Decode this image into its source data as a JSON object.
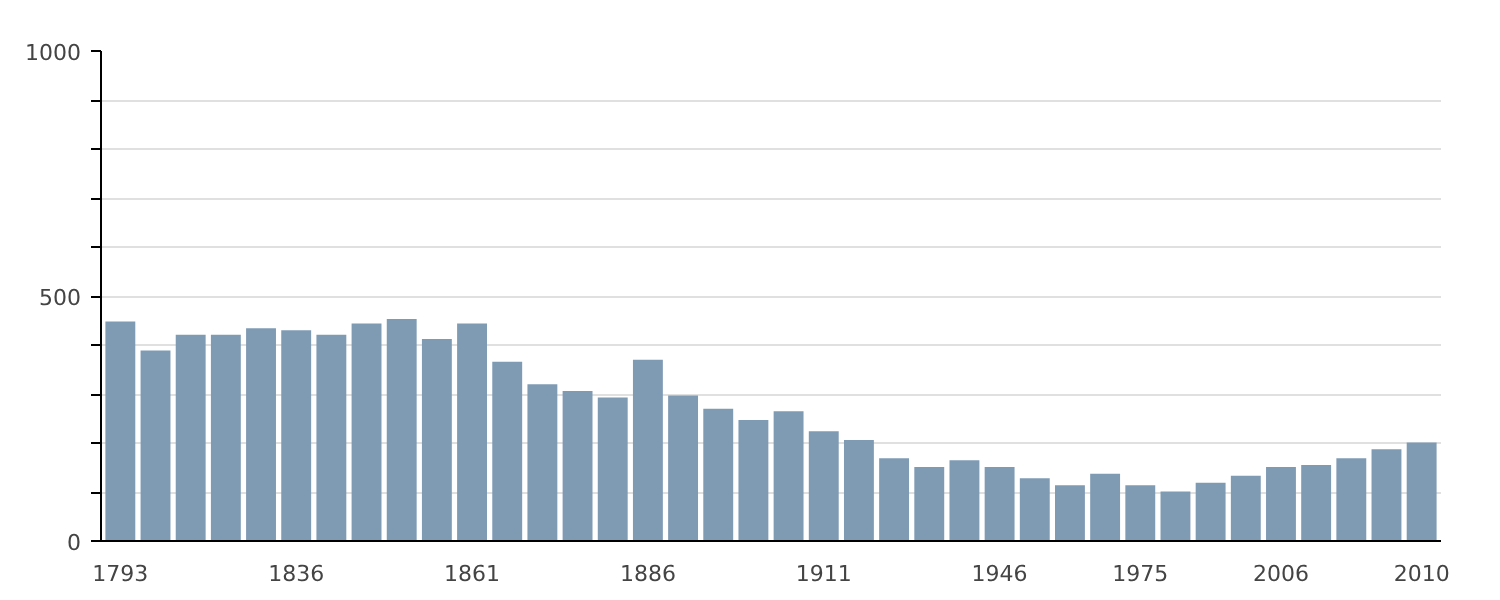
{
  "chart_data": {
    "type": "bar",
    "categories": [
      "1793",
      null,
      null,
      null,
      null,
      "1836",
      null,
      null,
      null,
      null,
      "1861",
      null,
      null,
      null,
      null,
      "1886",
      null,
      null,
      null,
      null,
      "1911",
      null,
      null,
      null,
      null,
      "1946",
      null,
      null,
      null,
      "1975",
      null,
      null,
      null,
      "2006",
      null,
      null,
      null,
      "2010"
    ],
    "values": [
      448,
      389,
      421,
      421,
      434,
      430,
      421,
      444,
      453,
      412,
      444,
      366,
      320,
      306,
      293,
      370,
      297,
      270,
      247,
      265,
      224,
      206,
      169,
      151,
      165,
      151,
      128,
      114,
      137,
      114,
      101,
      119,
      133,
      151,
      155,
      169,
      187,
      201
    ],
    "color": "#7f9bb4",
    "ylim": [
      0,
      1000
    ],
    "yticks": [
      0,
      {
        "value": 100,
        "label": null
      },
      {
        "value": 200,
        "label": null
      },
      {
        "value": 300,
        "label": null
      },
      {
        "value": 400,
        "label": null
      },
      500,
      {
        "value": 600,
        "label": null
      },
      {
        "value": 700,
        "label": null
      },
      {
        "value": 800,
        "label": null
      },
      {
        "value": 900,
        "label": null
      },
      1000
    ],
    "grid": "y"
  }
}
